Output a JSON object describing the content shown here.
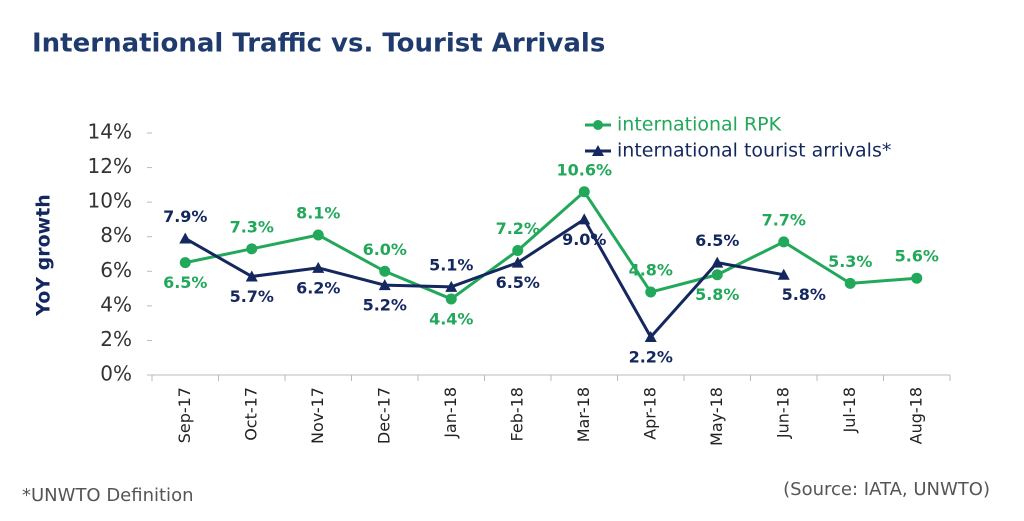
{
  "chart_data": {
    "type": "line",
    "title": "International Traffic vs. Tourist Arrivals",
    "y_label": "YoY growth",
    "footnote": "*UNWTO Definition",
    "source": "(Source: IATA, UNWTO)",
    "categories": [
      "Sep-17",
      "Oct-17",
      "Nov-17",
      "Dec-17",
      "Jan-18",
      "Feb-18",
      "Mar-18",
      "Apr-18",
      "May-18",
      "Jun-18",
      "Jul-18",
      "Aug-18"
    ],
    "series": [
      {
        "name": "international RPK",
        "color": "#22a85a",
        "marker": "circle",
        "values": [
          6.5,
          7.3,
          8.1,
          6.0,
          4.4,
          7.2,
          10.6,
          4.8,
          5.8,
          7.7,
          5.3,
          5.6
        ],
        "value_labels": [
          "6.5%",
          "7.3%",
          "8.1%",
          "6.0%",
          "4.4%",
          "7.2%",
          "10.6%",
          "4.8%",
          "5.8%",
          "7.7%",
          "5.3%",
          "5.6%"
        ]
      },
      {
        "name": "international tourist arrivals*",
        "color": "#14275e",
        "marker": "triangle",
        "values": [
          7.9,
          5.7,
          6.2,
          5.2,
          5.1,
          6.5,
          9.0,
          2.2,
          6.5,
          5.8,
          null,
          null
        ],
        "value_labels": [
          "7.9%",
          "5.7%",
          "6.2%",
          "5.2%",
          "5.1%",
          "6.5%",
          "9.0%",
          "2.2%",
          "6.5%",
          "5.8%",
          null,
          null
        ]
      }
    ],
    "ylim": [
      0,
      14
    ],
    "yticks": [
      {
        "value": 0,
        "label": "0%"
      },
      {
        "value": 2,
        "label": "2%"
      },
      {
        "value": 4,
        "label": "4%"
      },
      {
        "value": 6,
        "label": "6%"
      },
      {
        "value": 8,
        "label": "8%"
      },
      {
        "value": 10,
        "label": "10%"
      },
      {
        "value": 12,
        "label": "12%"
      },
      {
        "value": 14,
        "label": "14%"
      }
    ],
    "grid": false,
    "legend": "top-right"
  }
}
